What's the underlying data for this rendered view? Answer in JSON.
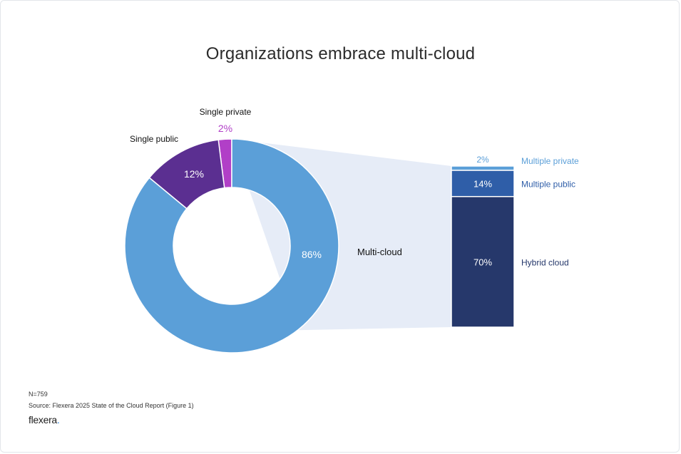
{
  "title": "Organizations embrace multi-cloud",
  "footer": {
    "n": "N=759",
    "source": "Source: Flexera 2025 State of the Cloud Report (Figure 1)",
    "logo": "flexera"
  },
  "colors": {
    "multi_cloud": "#5b9fd8",
    "single_public": "#5b2f91",
    "single_private": "#b13fc7",
    "expansion": "#e6ecf7",
    "multiple_private": "#5b9fd8",
    "multiple_public": "#2f5ea8",
    "hybrid_cloud": "#26386b"
  },
  "chart_data": [
    {
      "type": "pie",
      "variant": "donut",
      "slices": [
        {
          "label": "Single private",
          "value": 2,
          "display": "2%"
        },
        {
          "label": "Single public",
          "value": 12,
          "display": "12%"
        },
        {
          "label": "Multi-cloud",
          "value": 86,
          "display": "86%"
        }
      ]
    },
    {
      "type": "bar",
      "variant": "stacked-100",
      "parent": "Multi-cloud",
      "segments": [
        {
          "label": "Multiple private",
          "value": 2,
          "display": "2%"
        },
        {
          "label": "Multiple public",
          "value": 14,
          "display": "14%"
        },
        {
          "label": "Hybrid cloud",
          "value": 70,
          "display": "70%"
        }
      ]
    }
  ]
}
